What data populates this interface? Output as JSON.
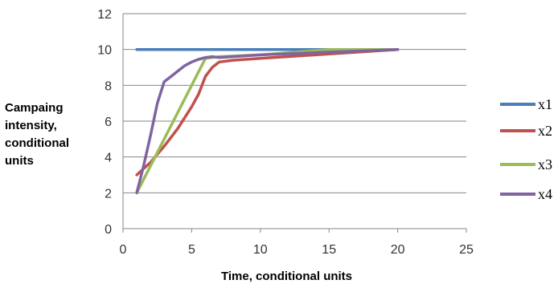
{
  "chart_data": {
    "type": "line",
    "xlabel": "Time, conditional units",
    "ylabel_lines": [
      "Campaing",
      "intensity,",
      "conditional",
      "units"
    ],
    "xlim": [
      0,
      25
    ],
    "ylim": [
      0,
      12
    ],
    "x_ticks": [
      0,
      5,
      10,
      15,
      20,
      25
    ],
    "y_ticks": [
      0,
      2,
      4,
      6,
      8,
      10,
      12
    ],
    "grid": "horizontal",
    "legend_position": "right",
    "series": [
      {
        "name": "x1",
        "color": "#4a7ebb",
        "points": [
          [
            1,
            10
          ],
          [
            20,
            10
          ]
        ]
      },
      {
        "name": "x2",
        "color": "#c0504d",
        "points": [
          [
            1,
            3
          ],
          [
            2,
            3.7
          ],
          [
            3,
            4.6
          ],
          [
            4,
            5.6
          ],
          [
            5,
            6.8
          ],
          [
            5.5,
            7.5
          ],
          [
            6,
            8.5
          ],
          [
            6.5,
            9.0
          ],
          [
            7,
            9.3
          ],
          [
            8,
            9.4
          ],
          [
            10,
            9.5
          ],
          [
            15,
            9.75
          ],
          [
            20,
            10
          ]
        ]
      },
      {
        "name": "x3",
        "color": "#9bbb59",
        "points": [
          [
            1,
            2
          ],
          [
            2,
            3.5
          ],
          [
            3,
            5
          ],
          [
            4,
            6.5
          ],
          [
            5,
            8
          ],
          [
            6,
            9.5
          ],
          [
            7,
            9.6
          ],
          [
            10,
            9.7
          ],
          [
            15,
            10
          ],
          [
            20,
            10
          ]
        ]
      },
      {
        "name": "x4",
        "color": "#8064a2",
        "points": [
          [
            1,
            2
          ],
          [
            1.5,
            3.5
          ],
          [
            2,
            5.2
          ],
          [
            2.5,
            7.0
          ],
          [
            3,
            8.2
          ],
          [
            3.5,
            8.5
          ],
          [
            4,
            8.8
          ],
          [
            4.5,
            9.1
          ],
          [
            5,
            9.3
          ],
          [
            5.5,
            9.45
          ],
          [
            6,
            9.55
          ],
          [
            6.5,
            9.6
          ],
          [
            7,
            9.55
          ],
          [
            10,
            9.7
          ],
          [
            15,
            9.85
          ],
          [
            20,
            10
          ]
        ]
      }
    ]
  }
}
